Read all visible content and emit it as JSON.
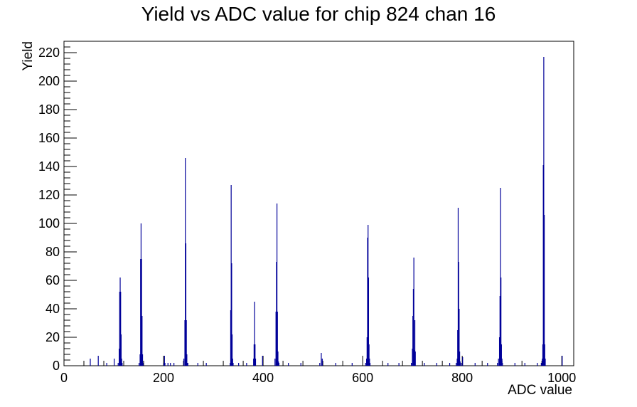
{
  "chart_data": {
    "type": "bar",
    "title": "Yield vs ADC value for chip 824 chan 16",
    "xlabel": "ADC value",
    "ylabel": "Yield",
    "xlim": [
      0,
      1024
    ],
    "ylim": [
      0,
      228
    ],
    "xticks": [
      0,
      200,
      400,
      600,
      800,
      1000
    ],
    "yticks": [
      0,
      20,
      40,
      60,
      80,
      100,
      120,
      140,
      160,
      180,
      200,
      220
    ],
    "line_color": "#000099",
    "grid": false,
    "series": [
      {
        "x": [
          52,
          68,
          85,
          100,
          108,
          110,
          111,
          112,
          113,
          114,
          115,
          116,
          150,
          152,
          153,
          154,
          155,
          156,
          157,
          158,
          200,
          201,
          202,
          208,
          213,
          220,
          240,
          242,
          243,
          244,
          245,
          246,
          247,
          248,
          268,
          285,
          333,
          334,
          335,
          336,
          337,
          338,
          339,
          350,
          366,
          380,
          381,
          382,
          383,
          384,
          398,
          423,
          425,
          426,
          427,
          428,
          429,
          430,
          431,
          450,
          475,
          513,
          516,
          518,
          545,
          578,
          605,
          607,
          608,
          609,
          610,
          611,
          612,
          613,
          614,
          650,
          672,
          697,
          699,
          700,
          701,
          702,
          703,
          704,
          705,
          723,
          748,
          774,
          787,
          789,
          790,
          791,
          792,
          793,
          794,
          795,
          797,
          800,
          825,
          850,
          870,
          872,
          874,
          875,
          876,
          877,
          878,
          879,
          880,
          905,
          925,
          950,
          958,
          960,
          961,
          962,
          963,
          964,
          965,
          966,
          1000
        ],
        "values": [
          5,
          7,
          2,
          5,
          2,
          12,
          52,
          62,
          52,
          22,
          5,
          2,
          2,
          8,
          75,
          100,
          75,
          35,
          8,
          2,
          2,
          7,
          2,
          2,
          2,
          2,
          5,
          32,
          146,
          86,
          32,
          8,
          2,
          2,
          2,
          2,
          2,
          39,
          127,
          72,
          22,
          5,
          2,
          2,
          2,
          5,
          15,
          45,
          15,
          5,
          7,
          5,
          38,
          73,
          114,
          38,
          10,
          3,
          2,
          2,
          2,
          2,
          9,
          5,
          2,
          2,
          2,
          5,
          20,
          90,
          99,
          62,
          15,
          5,
          2,
          2,
          2,
          2,
          12,
          35,
          54,
          76,
          11,
          32,
          10,
          2,
          2,
          2,
          2,
          5,
          25,
          111,
          73,
          40,
          10,
          3,
          2,
          6,
          2,
          2,
          2,
          5,
          20,
          49,
          125,
          62,
          15,
          5,
          2,
          2,
          2,
          2,
          2,
          5,
          15,
          141,
          217,
          106,
          15,
          5,
          7
        ]
      }
    ]
  }
}
